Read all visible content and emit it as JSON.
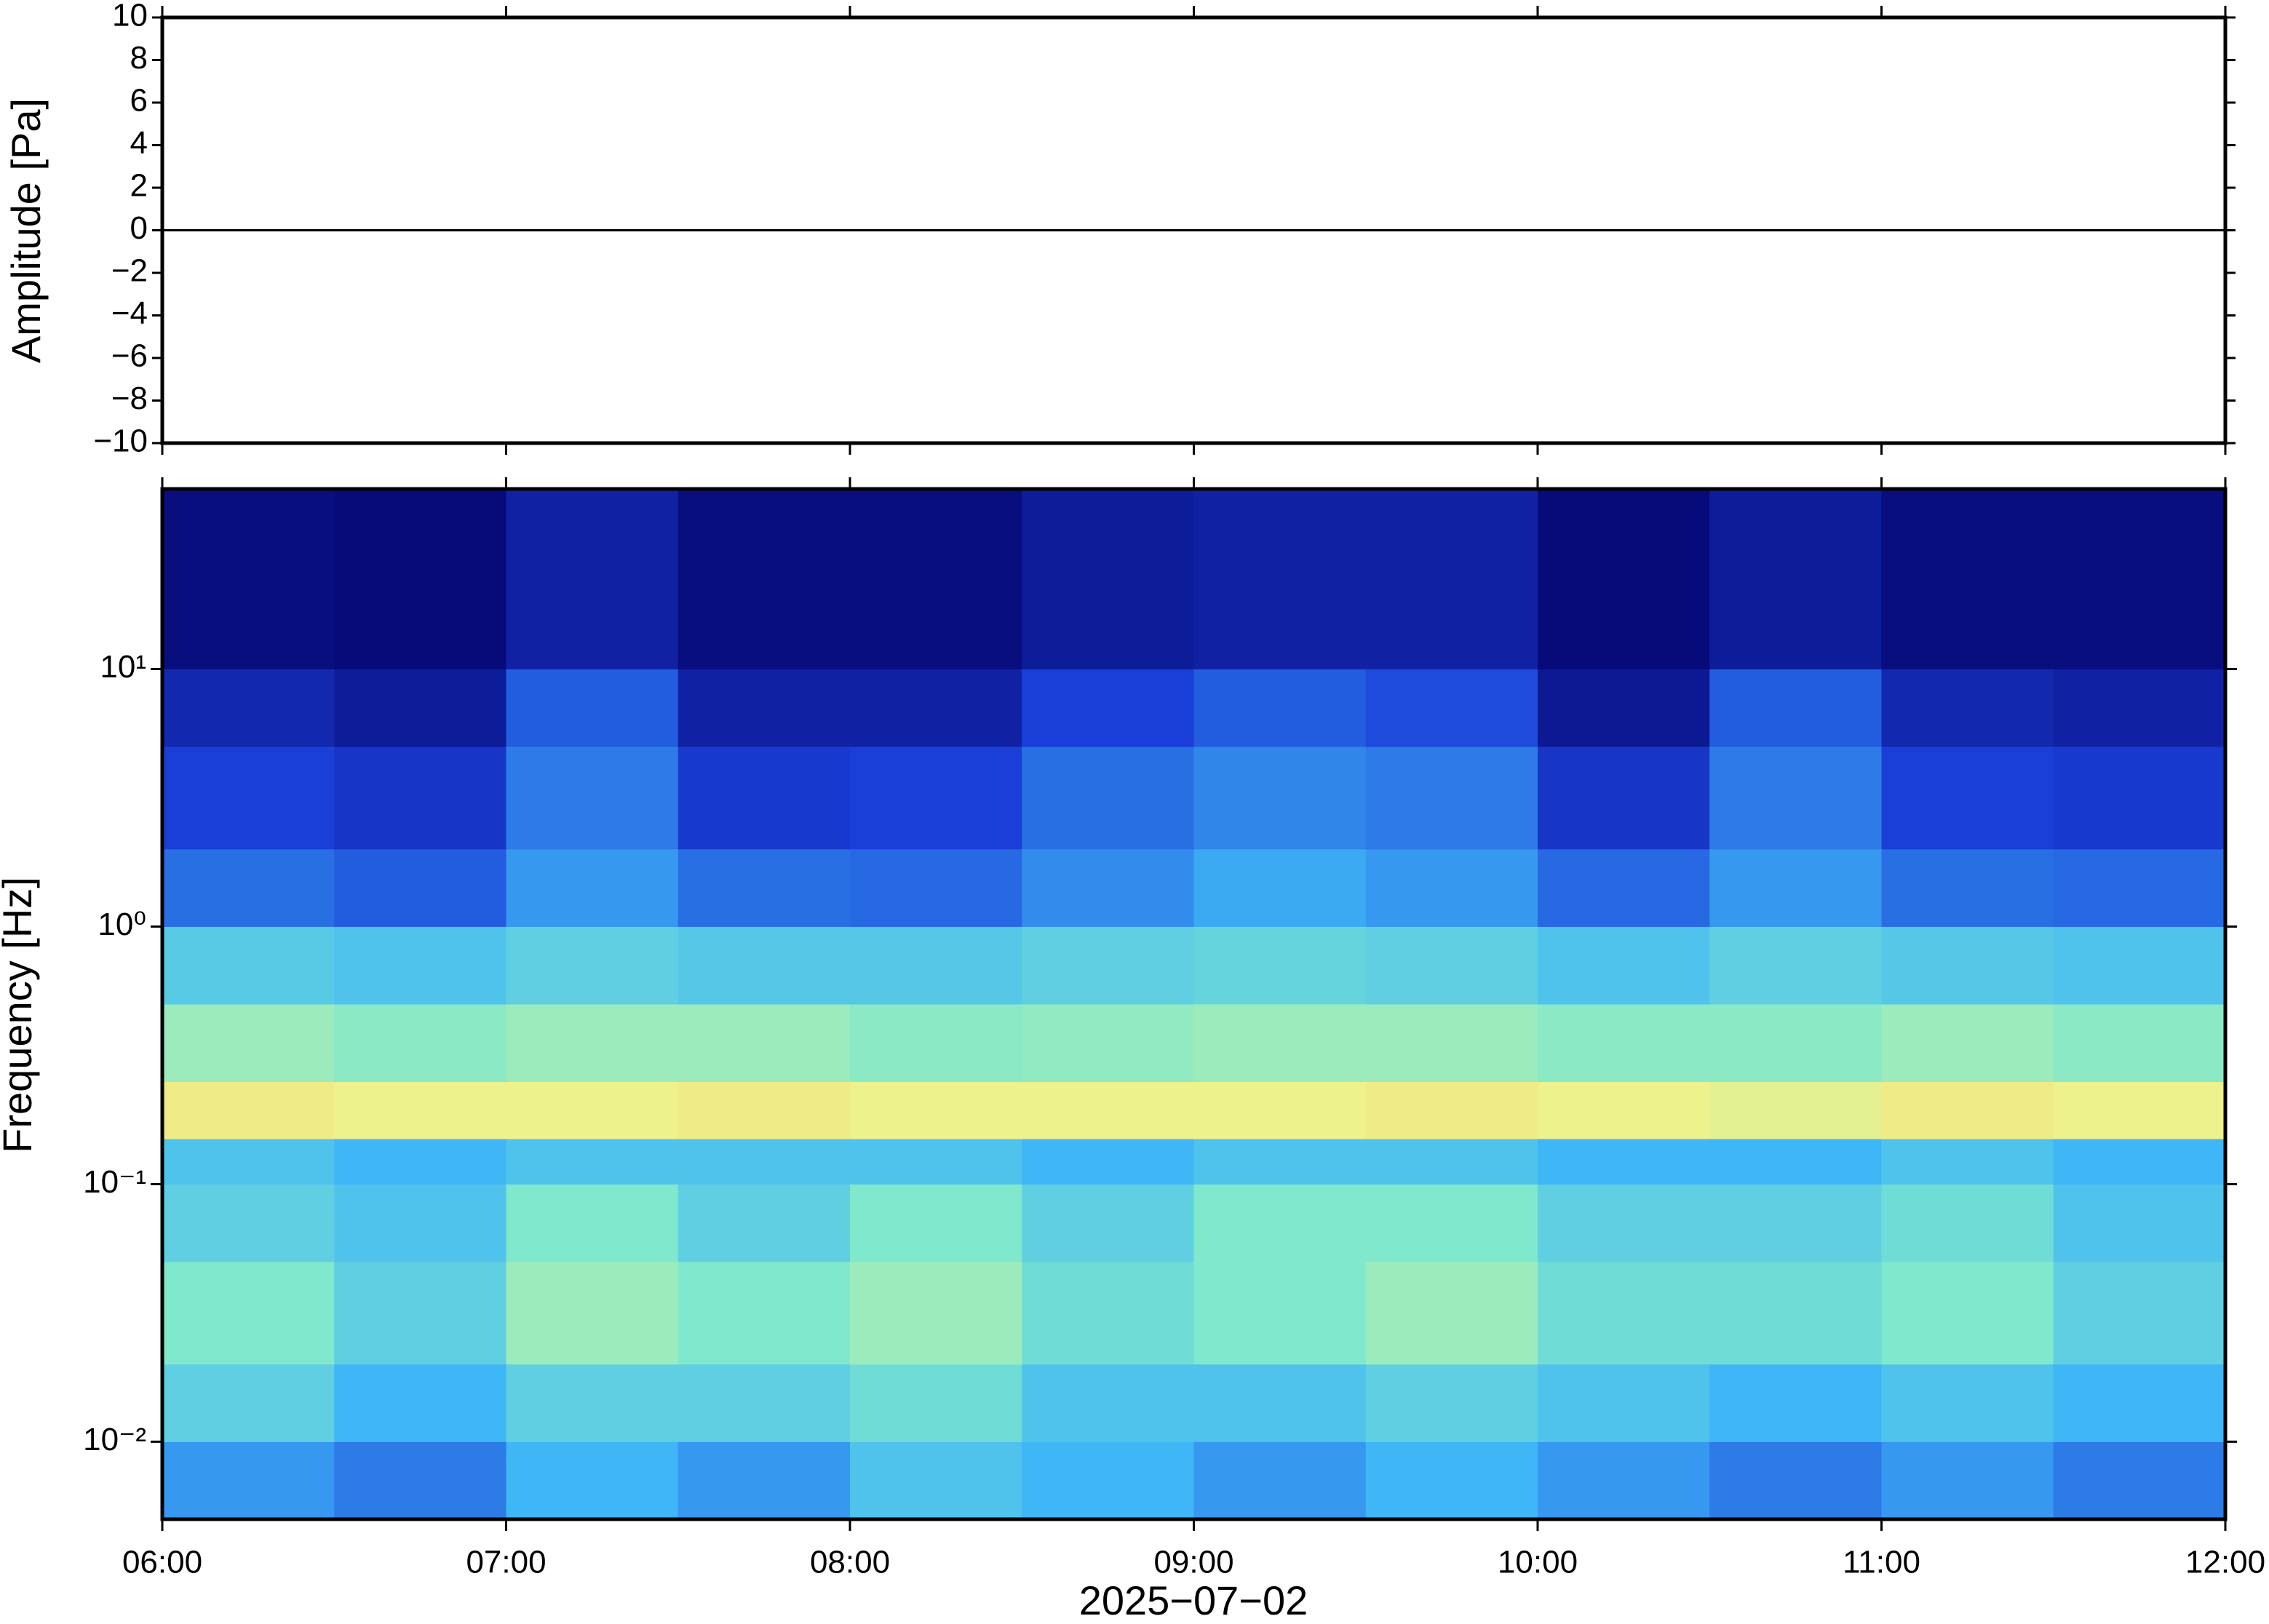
{
  "chart_data": [
    {
      "type": "line",
      "ylabel": "Amplitude [Pa]",
      "color": "#000000",
      "x": [
        6,
        6.5,
        7,
        7.5,
        8,
        8.5,
        9,
        9.5,
        10,
        10.5,
        11,
        11.5,
        12
      ],
      "values": [
        0,
        0,
        0,
        0,
        0,
        0,
        0,
        0,
        0,
        0,
        0,
        0,
        0
      ],
      "xlim": [
        6,
        12
      ],
      "ylim": [
        -10,
        10
      ],
      "yticks": [
        10,
        8,
        6,
        4,
        2,
        0,
        {
          "value": -2,
          "label": "−2"
        },
        {
          "value": -4,
          "label": "−4"
        },
        {
          "value": -6,
          "label": "−6"
        },
        {
          "value": -8,
          "label": "−8"
        },
        {
          "value": -10,
          "label": "−10"
        }
      ]
    },
    {
      "type": "heatmap",
      "ylabel": "Frequency [Hz]",
      "xlabel": "2025−07−02",
      "log_y": true,
      "xlim": [
        6,
        12
      ],
      "ylim": [
        0.005,
        50
      ],
      "xticks": [
        {
          "value": 6,
          "label": "06:00"
        },
        {
          "value": 7,
          "label": "07:00"
        },
        {
          "value": 8,
          "label": "08:00"
        },
        {
          "value": 9,
          "label": "09:00"
        },
        {
          "value": 10,
          "label": "10:00"
        },
        {
          "value": 11,
          "label": "11:00"
        },
        {
          "value": 12,
          "label": "12:00"
        }
      ],
      "yticks": [
        {
          "value": 0.01,
          "label": "10⁻²"
        },
        {
          "value": 0.1,
          "label": "10⁻¹"
        },
        {
          "value": 1,
          "label": "10⁰"
        },
        {
          "value": 10,
          "label": "10¹"
        }
      ],
      "x_bins": [
        6,
        6.5,
        7,
        7.5,
        8,
        8.5,
        9,
        9.5,
        10,
        10.5,
        11,
        11.5,
        12
      ],
      "y_bins": [
        0.005,
        0.01,
        0.02,
        0.05,
        0.1,
        0.15,
        0.25,
        0.5,
        1,
        2,
        5,
        10,
        50
      ],
      "zlim": [
        0,
        1
      ],
      "colormap": [
        "#05056e",
        "#1a3fd8",
        "#3fb6f5",
        "#80e8cc",
        "#eef28c",
        "#f7b466"
      ],
      "z": [
        [
          0.35,
          0.3,
          0.4,
          0.35,
          0.45,
          0.4,
          0.35,
          0.4,
          0.35,
          0.3,
          0.35,
          0.3
        ],
        [
          0.5,
          0.4,
          0.5,
          0.5,
          0.55,
          0.45,
          0.45,
          0.5,
          0.45,
          0.4,
          0.45,
          0.4
        ],
        [
          0.6,
          0.5,
          0.65,
          0.6,
          0.65,
          0.55,
          0.6,
          0.65,
          0.55,
          0.55,
          0.6,
          0.5
        ],
        [
          0.5,
          0.45,
          0.6,
          0.5,
          0.6,
          0.5,
          0.6,
          0.6,
          0.5,
          0.5,
          0.55,
          0.45
        ],
        [
          0.45,
          0.4,
          0.45,
          0.45,
          0.45,
          0.4,
          0.45,
          0.45,
          0.4,
          0.4,
          0.45,
          0.4
        ],
        [
          0.82,
          0.8,
          0.8,
          0.82,
          0.8,
          0.8,
          0.8,
          0.82,
          0.8,
          0.78,
          0.82,
          0.8
        ],
        [
          0.65,
          0.62,
          0.65,
          0.65,
          0.62,
          0.63,
          0.65,
          0.65,
          0.62,
          0.62,
          0.65,
          0.62
        ],
        [
          0.48,
          0.45,
          0.5,
          0.47,
          0.47,
          0.5,
          0.52,
          0.5,
          0.45,
          0.5,
          0.47,
          0.45
        ],
        [
          0.28,
          0.25,
          0.35,
          0.28,
          0.27,
          0.33,
          0.38,
          0.35,
          0.27,
          0.35,
          0.28,
          0.27
        ],
        [
          0.2,
          0.17,
          0.3,
          0.18,
          0.2,
          0.28,
          0.32,
          0.3,
          0.17,
          0.3,
          0.2,
          0.18
        ],
        [
          0.12,
          0.08,
          0.25,
          0.1,
          0.1,
          0.2,
          0.25,
          0.22,
          0.07,
          0.25,
          0.12,
          0.1
        ],
        [
          0.03,
          0.02,
          0.1,
          0.03,
          0.03,
          0.08,
          0.1,
          0.1,
          0.02,
          0.08,
          0.03,
          0.03
        ]
      ]
    }
  ]
}
